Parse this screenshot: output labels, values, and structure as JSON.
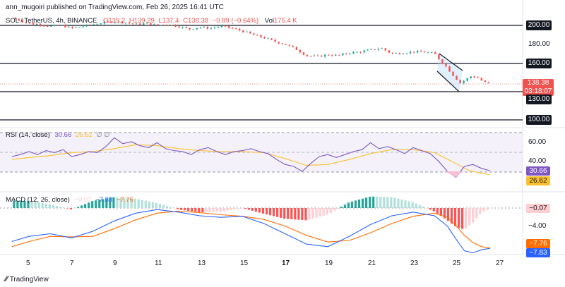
{
  "header": {
    "published": "ann_mugoiri published on TradingView.com, Feb 26, 2025 16:41 UTC",
    "symbol": "SOL / TetherUS, 4h, BINANCE",
    "open": "O139.2",
    "high": "H139.29",
    "low": "L137.4",
    "close": "C138.38",
    "change": "−0.89 (−0.64%)",
    "volume_label": "Vol",
    "volume": "175.4 K"
  },
  "price_axis": {
    "ticks": [
      "200.00",
      "180.00",
      "160.00",
      "130.00",
      "100.00"
    ],
    "current_price": "138.38",
    "countdown": "03:18:07"
  },
  "rsi": {
    "label": "RSI (14, close)",
    "value": "30.66",
    "ma_value": "26.62",
    "ticks": [
      "60.00",
      "40.00"
    ],
    "badge_rsi": "30.66",
    "badge_ma": "26.62"
  },
  "macd": {
    "label": "MACD (12, 26, close)",
    "hist_value": "−0.07",
    "macd_value": "−7.83",
    "signal_value": "−7.76",
    "ticks": [
      "−0.07",
      "−4.00"
    ],
    "badge_signal": "−7.76",
    "badge_macd": "−7.83"
  },
  "x_axis": {
    "labels": [
      "5",
      "7",
      "9",
      "11",
      "13",
      "15",
      "17",
      "19",
      "21",
      "23",
      "25",
      "27"
    ]
  },
  "footer": {
    "brand": "TradingView"
  },
  "colors": {
    "up": "#26a69a",
    "down": "#ef5350",
    "rsi": "#7e57c2",
    "rsi_ma": "#fbc02d",
    "macd": "#2962ff",
    "signal": "#ff6d00",
    "level": "#131722"
  },
  "chart_data": {
    "type": "candlestick",
    "levels": [
      200,
      160,
      130,
      100
    ],
    "price_ylim": [
      95,
      215
    ],
    "price_series": [
      [
        4.2,
        208
      ],
      [
        4.5,
        206
      ],
      [
        5,
        202
      ],
      [
        5.5,
        201
      ],
      [
        6,
        199
      ],
      [
        6.5,
        200
      ],
      [
        7,
        197
      ],
      [
        7.5,
        199
      ],
      [
        8,
        201
      ],
      [
        8.5,
        203
      ],
      [
        9,
        204
      ],
      [
        9.5,
        203
      ],
      [
        10,
        201
      ],
      [
        10.5,
        202
      ],
      [
        11,
        200
      ],
      [
        11.5,
        201
      ],
      [
        12,
        199
      ],
      [
        12.5,
        196
      ],
      [
        13,
        198
      ],
      [
        13.5,
        197
      ],
      [
        14,
        199
      ],
      [
        14.5,
        197
      ],
      [
        15,
        194
      ],
      [
        15.5,
        190
      ],
      [
        16,
        187
      ],
      [
        16.5,
        183
      ],
      [
        17,
        180
      ],
      [
        17.5,
        175
      ],
      [
        18,
        168
      ],
      [
        18.5,
        167
      ],
      [
        19,
        169
      ],
      [
        19.5,
        168
      ],
      [
        20,
        171
      ],
      [
        20.5,
        172
      ],
      [
        21,
        174
      ],
      [
        21.5,
        176
      ],
      [
        22,
        170
      ],
      [
        22.5,
        171
      ],
      [
        23,
        172
      ],
      [
        23.5,
        172
      ],
      [
        24,
        170
      ],
      [
        24.3,
        162
      ],
      [
        24.6,
        155
      ],
      [
        24.8,
        149
      ],
      [
        25,
        144
      ],
      [
        25.2,
        139
      ],
      [
        25.4,
        142
      ],
      [
        25.7,
        146
      ],
      [
        26,
        145
      ],
      [
        26.3,
        140
      ],
      [
        26.6,
        138.38
      ]
    ],
    "rsi_ylim": [
      10,
      80
    ],
    "rsi_series": [
      [
        4.2,
        45
      ],
      [
        4.6,
        47
      ],
      [
        5,
        50
      ],
      [
        5.4,
        47
      ],
      [
        5.8,
        51
      ],
      [
        6.2,
        49
      ],
      [
        6.6,
        52
      ],
      [
        7,
        45
      ],
      [
        7.4,
        47
      ],
      [
        7.8,
        50
      ],
      [
        8.2,
        49
      ],
      [
        8.6,
        55
      ],
      [
        9,
        64
      ],
      [
        9.4,
        58
      ],
      [
        9.8,
        60
      ],
      [
        10.2,
        56
      ],
      [
        10.6,
        54
      ],
      [
        11,
        59
      ],
      [
        11.4,
        53
      ],
      [
        11.8,
        51
      ],
      [
        12.2,
        50
      ],
      [
        12.6,
        47
      ],
      [
        13,
        52
      ],
      [
        13.4,
        54
      ],
      [
        13.8,
        50
      ],
      [
        14.2,
        47
      ],
      [
        14.6,
        50
      ],
      [
        15,
        51
      ],
      [
        15.4,
        53
      ],
      [
        15.8,
        50
      ],
      [
        16.2,
        48
      ],
      [
        16.6,
        42
      ],
      [
        17,
        37
      ],
      [
        17.4,
        35
      ],
      [
        17.8,
        30
      ],
      [
        18.2,
        38
      ],
      [
        18.6,
        45
      ],
      [
        19,
        47
      ],
      [
        19.4,
        44
      ],
      [
        19.8,
        47
      ],
      [
        20.2,
        50
      ],
      [
        20.6,
        52
      ],
      [
        21,
        59
      ],
      [
        21.4,
        53
      ],
      [
        21.8,
        55
      ],
      [
        22.2,
        52
      ],
      [
        22.6,
        48
      ],
      [
        23,
        54
      ],
      [
        23.4,
        51
      ],
      [
        23.8,
        48
      ],
      [
        24.2,
        40
      ],
      [
        24.6,
        30
      ],
      [
        25,
        24
      ],
      [
        25.4,
        35
      ],
      [
        25.8,
        37
      ],
      [
        26.2,
        33
      ],
      [
        26.6,
        30.66
      ]
    ],
    "rsi_ma_series": [
      [
        4.2,
        42
      ],
      [
        5,
        44
      ],
      [
        6,
        46
      ],
      [
        7,
        49
      ],
      [
        8,
        50
      ],
      [
        9,
        53
      ],
      [
        10,
        57
      ],
      [
        11,
        56
      ],
      [
        12,
        53
      ],
      [
        13,
        51
      ],
      [
        14,
        50
      ],
      [
        15,
        50
      ],
      [
        16,
        49
      ],
      [
        17,
        43
      ],
      [
        18,
        36
      ],
      [
        19,
        37
      ],
      [
        20,
        42
      ],
      [
        21,
        48
      ],
      [
        22,
        52
      ],
      [
        23,
        52
      ],
      [
        24,
        49
      ],
      [
        25,
        38
      ],
      [
        25.6,
        31
      ],
      [
        26.2,
        28
      ],
      [
        26.6,
        26.62
      ]
    ],
    "macd_ylim": [
      -10,
      1
    ],
    "macd_series": [
      [
        4.2,
        -6.5
      ],
      [
        5,
        -5.5
      ],
      [
        6,
        -5.0
      ],
      [
        7,
        -5.8
      ],
      [
        8,
        -4.5
      ],
      [
        9,
        -2.5
      ],
      [
        10,
        -1.0
      ],
      [
        11,
        -0.3
      ],
      [
        12,
        -0.8
      ],
      [
        13,
        -1.5
      ],
      [
        14,
        -1.8
      ],
      [
        15,
        -1.6
      ],
      [
        16,
        -3.0
      ],
      [
        17,
        -5.0
      ],
      [
        18,
        -7.0
      ],
      [
        19,
        -7.5
      ],
      [
        20,
        -5.5
      ],
      [
        21,
        -3.2
      ],
      [
        22,
        -1.5
      ],
      [
        23,
        -0.8
      ],
      [
        24,
        -1.5
      ],
      [
        24.6,
        -3.5
      ],
      [
        25,
        -6.0
      ],
      [
        25.4,
        -8.3
      ],
      [
        25.8,
        -8.7
      ],
      [
        26.2,
        -8.1
      ],
      [
        26.6,
        -7.83
      ]
    ],
    "signal_series": [
      [
        4.2,
        -7.5
      ],
      [
        5,
        -6.5
      ],
      [
        6,
        -5.5
      ],
      [
        7,
        -5.6
      ],
      [
        8,
        -5.5
      ],
      [
        9,
        -4.0
      ],
      [
        10,
        -2.3
      ],
      [
        11,
        -1.0
      ],
      [
        12,
        -0.6
      ],
      [
        13,
        -0.9
      ],
      [
        14,
        -1.3
      ],
      [
        15,
        -1.6
      ],
      [
        16,
        -2.2
      ],
      [
        17,
        -3.5
      ],
      [
        18,
        -5.3
      ],
      [
        19,
        -6.6
      ],
      [
        20,
        -6.3
      ],
      [
        21,
        -4.8
      ],
      [
        22,
        -3.0
      ],
      [
        23,
        -1.6
      ],
      [
        24,
        -1.0
      ],
      [
        24.6,
        -1.8
      ],
      [
        25,
        -3.4
      ],
      [
        25.4,
        -5.3
      ],
      [
        25.8,
        -6.7
      ],
      [
        26.2,
        -7.5
      ],
      [
        26.6,
        -7.76
      ]
    ]
  }
}
